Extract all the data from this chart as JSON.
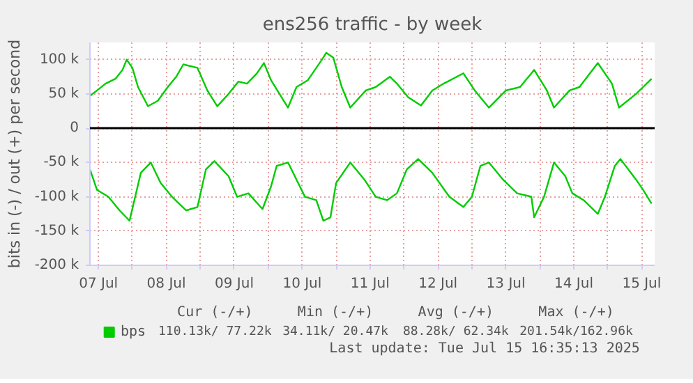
{
  "chart_data": {
    "type": "line",
    "title": "ens256 traffic - by week",
    "ylabel": "bits in (-) / out (+) per second",
    "xlim": [
      "2025-07-07T09:00",
      "2025-07-15T16:35"
    ],
    "xticks": [
      {
        "value": "2025-07-07T12:00",
        "label": "07 Jul"
      },
      {
        "value": "2025-07-08T00:00",
        "label": null
      },
      {
        "value": "2025-07-08T12:00",
        "label": "08 Jul"
      },
      {
        "value": "2025-07-09T00:00",
        "label": null
      },
      {
        "value": "2025-07-09T12:00",
        "label": "09 Jul"
      },
      {
        "value": "2025-07-10T00:00",
        "label": null
      },
      {
        "value": "2025-07-10T12:00",
        "label": "10 Jul"
      },
      {
        "value": "2025-07-11T00:00",
        "label": null
      },
      {
        "value": "2025-07-11T12:00",
        "label": "11 Jul"
      },
      {
        "value": "2025-07-12T00:00",
        "label": null
      },
      {
        "value": "2025-07-12T12:00",
        "label": "12 Jul"
      },
      {
        "value": "2025-07-13T00:00",
        "label": null
      },
      {
        "value": "2025-07-13T12:00",
        "label": "13 Jul"
      },
      {
        "value": "2025-07-14T00:00",
        "label": null
      },
      {
        "value": "2025-07-14T12:00",
        "label": "14 Jul"
      },
      {
        "value": "2025-07-15T00:00",
        "label": null
      },
      {
        "value": "2025-07-15T12:00",
        "label": "15 Jul"
      }
    ],
    "ylim": [
      -200000,
      125000
    ],
    "yticks": [
      {
        "value": -200000,
        "label": "-200 k"
      },
      {
        "value": -150000,
        "label": "-150 k"
      },
      {
        "value": -100000,
        "label": "-100 k"
      },
      {
        "value": -50000,
        "label": "-50 k"
      },
      0,
      {
        "value": 50000,
        "label": "50 k"
      },
      {
        "value": 100000,
        "label": "100 k"
      }
    ],
    "grid": true,
    "legend": "bottom",
    "line_style": "solid",
    "marker": "none",
    "ref_lines": [
      {
        "axis": "y",
        "value": 0,
        "label": null,
        "color": "#000000"
      }
    ],
    "series": [
      {
        "name": "bps",
        "color": "#00cc00",
        "x": [
          "2025-07-07T09:00",
          "2025-07-07T11:30",
          "2025-07-07T14:30",
          "2025-07-07T18:00",
          "2025-07-07T20:30",
          "2025-07-07T22:00",
          "2025-07-08T00:00",
          "2025-07-08T02:00",
          "2025-07-08T05:30",
          "2025-07-08T09:00",
          "2025-07-08T12:30",
          "2025-07-08T15:30",
          "2025-07-08T18:00",
          "2025-07-08T23:00",
          "2025-07-09T02:30",
          "2025-07-09T06:00",
          "2025-07-09T10:00",
          "2025-07-09T13:30",
          "2025-07-09T16:30",
          "2025-07-09T20:00",
          "2025-07-09T22:30",
          "2025-07-10T01:00",
          "2025-07-10T07:00",
          "2025-07-10T10:00",
          "2025-07-10T14:00",
          "2025-07-10T19:00",
          "2025-07-10T20:30",
          "2025-07-10T23:00",
          "2025-07-11T02:00",
          "2025-07-11T05:00",
          "2025-07-11T10:30",
          "2025-07-11T14:00",
          "2025-07-11T19:00",
          "2025-07-11T21:30",
          "2025-07-12T01:30",
          "2025-07-12T06:00",
          "2025-07-12T10:00",
          "2025-07-12T14:00",
          "2025-07-12T21:00",
          "2025-07-13T01:00",
          "2025-07-13T06:00",
          "2025-07-13T12:00",
          "2025-07-13T17:00",
          "2025-07-13T22:00",
          "2025-07-14T02:30",
          "2025-07-14T05:00",
          "2025-07-14T10:30",
          "2025-07-14T14:00",
          "2025-07-14T20:30",
          "2025-07-15T01:30",
          "2025-07-15T04:00",
          "2025-07-15T10:00",
          "2025-07-15T12:30",
          "2025-07-15T15:30"
        ],
        "values": [
          47000,
          55000,
          65000,
          72000,
          85000,
          100000,
          88000,
          60000,
          32000,
          40000,
          60000,
          75000,
          93000,
          88000,
          55000,
          32000,
          50000,
          68000,
          65000,
          80000,
          95000,
          70000,
          30000,
          60000,
          70000,
          100000,
          110000,
          103000,
          60000,
          30000,
          55000,
          60000,
          75000,
          65000,
          45000,
          33000,
          55000,
          65000,
          80000,
          55000,
          30000,
          55000,
          60000,
          85000,
          55000,
          30000,
          55000,
          60000,
          95000,
          65000,
          30000,
          50000,
          60000,
          72000
        ]
      },
      {
        "color": "#00cc00",
        "x": [
          "2025-07-07T09:00",
          "2025-07-07T11:30",
          "2025-07-07T15:30",
          "2025-07-07T19:30",
          "2025-07-07T23:00",
          "2025-07-08T01:00",
          "2025-07-08T03:00",
          "2025-07-08T06:30",
          "2025-07-08T10:00",
          "2025-07-08T14:00",
          "2025-07-08T19:00",
          "2025-07-08T23:00",
          "2025-07-09T02:00",
          "2025-07-09T05:00",
          "2025-07-09T10:00",
          "2025-07-09T13:00",
          "2025-07-09T17:00",
          "2025-07-09T22:00",
          "2025-07-10T01:00",
          "2025-07-10T03:00",
          "2025-07-10T07:00",
          "2025-07-10T10:00",
          "2025-07-10T13:00",
          "2025-07-10T17:00",
          "2025-07-10T19:30",
          "2025-07-10T22:00",
          "2025-07-11T00:00",
          "2025-07-11T05:00",
          "2025-07-11T10:00",
          "2025-07-11T14:00",
          "2025-07-11T18:00",
          "2025-07-11T21:30",
          "2025-07-12T01:00",
          "2025-07-12T05:00",
          "2025-07-12T10:00",
          "2025-07-12T16:00",
          "2025-07-12T21:00",
          "2025-07-13T00:00",
          "2025-07-13T03:00",
          "2025-07-13T06:00",
          "2025-07-13T11:00",
          "2025-07-13T16:00",
          "2025-07-13T21:00",
          "2025-07-13T22:00",
          "2025-07-14T01:30",
          "2025-07-14T05:00",
          "2025-07-14T09:00",
          "2025-07-14T11:30",
          "2025-07-14T15:30",
          "2025-07-14T20:30",
          "2025-07-14T23:00",
          "2025-07-15T02:30",
          "2025-07-15T04:30",
          "2025-07-15T10:00",
          "2025-07-15T12:30",
          "2025-07-15T15:30"
        ],
        "values": [
          -60000,
          -90000,
          -100000,
          -120000,
          -135000,
          -100000,
          -65000,
          -50000,
          -80000,
          -100000,
          -120000,
          -115000,
          -60000,
          -48000,
          -70000,
          -100000,
          -95000,
          -118000,
          -85000,
          -55000,
          -50000,
          -75000,
          -100000,
          -105000,
          -135000,
          -130000,
          -80000,
          -50000,
          -75000,
          -100000,
          -105000,
          -95000,
          -60000,
          -45000,
          -65000,
          -100000,
          -115000,
          -100000,
          -55000,
          -50000,
          -75000,
          -95000,
          -100000,
          -130000,
          -100000,
          -50000,
          -70000,
          -95000,
          -105000,
          -125000,
          -100000,
          -55000,
          -45000,
          -75000,
          -90000,
          -110000
        ]
      }
    ],
    "annotations": [
      "Cur (-/+)",
      "Min (-/+)",
      "Avg (-/+)",
      "Max (-/+)",
      "110.13k/ 77.22k",
      "34.11k/ 20.47k",
      "88.28k/ 62.34k",
      "201.54k/162.96k",
      "Last update: Tue Jul 15 16:35:13 2025"
    ]
  }
}
